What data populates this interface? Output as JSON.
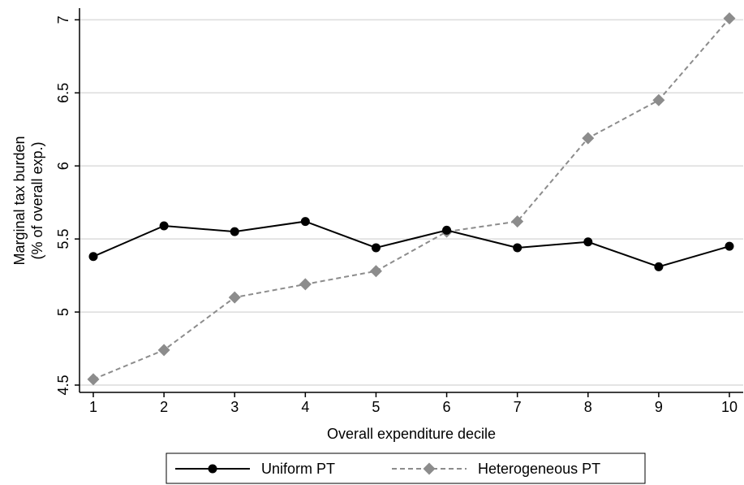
{
  "chart_data": {
    "type": "line",
    "xlabel": "Overall expenditure decile",
    "ylabel": [
      "Marginal tax burden",
      "(% of overall exp.)"
    ],
    "x": [
      1,
      2,
      3,
      4,
      5,
      6,
      7,
      8,
      9,
      10
    ],
    "xticks": [
      "1",
      "2",
      "3",
      "4",
      "5",
      "6",
      "7",
      "8",
      "9",
      "10"
    ],
    "yticks": [
      "4.5",
      "5",
      "5.5",
      "6",
      "6.5",
      "7"
    ],
    "ylim": [
      4.45,
      7.08
    ],
    "grid": true,
    "legend_position": "bottom",
    "series": [
      {
        "name": "Uniform PT",
        "color": "#000000",
        "marker": "circle",
        "line_style": "solid",
        "values": [
          5.38,
          5.59,
          5.55,
          5.62,
          5.44,
          5.56,
          5.44,
          5.48,
          5.31,
          5.45
        ]
      },
      {
        "name": "Heterogeneous PT",
        "color": "#8c8c8c",
        "marker": "diamond",
        "line_style": "dashed",
        "values": [
          4.54,
          4.74,
          5.1,
          5.19,
          5.28,
          5.55,
          5.62,
          6.19,
          6.45,
          7.01
        ]
      }
    ]
  }
}
